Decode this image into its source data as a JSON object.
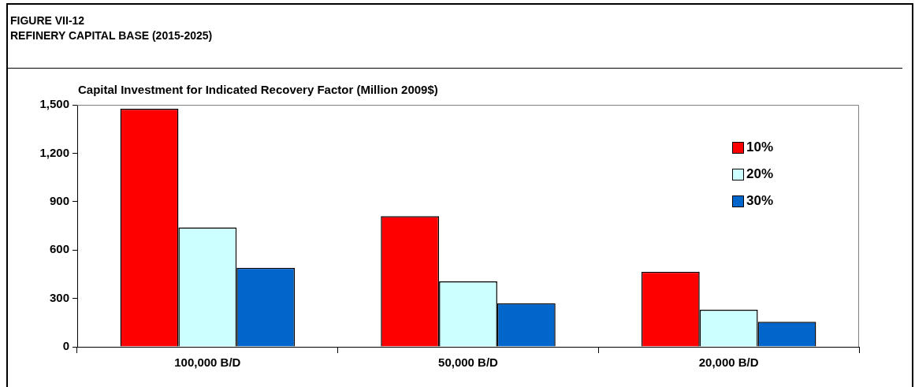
{
  "chart_data": {
    "type": "bar",
    "title": "FIGURE VII-12",
    "subtitle": "REFINERY CAPITAL BASE (2015-2025)",
    "ylabel": "Capital Investment for Indicated Recovery Factor (Million 2009$)",
    "categories": [
      "100,000 B/D",
      "50,000 B/D",
      "20,000 B/D"
    ],
    "series": [
      {
        "name": "10%",
        "color": "#ff0000",
        "values": [
          1475,
          810,
          465
        ]
      },
      {
        "name": "20%",
        "color": "#ccffff",
        "values": [
          740,
          405,
          230
        ]
      },
      {
        "name": "30%",
        "color": "#0066cc",
        "values": [
          490,
          270,
          155
        ]
      }
    ],
    "ylim": [
      0,
      1500
    ],
    "yticks": [
      {
        "value": 0,
        "label": "0"
      },
      {
        "value": 300,
        "label": "300"
      },
      {
        "value": 600,
        "label": "600"
      },
      {
        "value": 900,
        "label": "900"
      },
      {
        "value": 1200,
        "label": "1,200"
      },
      {
        "value": 1500,
        "label": "1,500"
      }
    ],
    "grid": false,
    "legend": "top right"
  }
}
